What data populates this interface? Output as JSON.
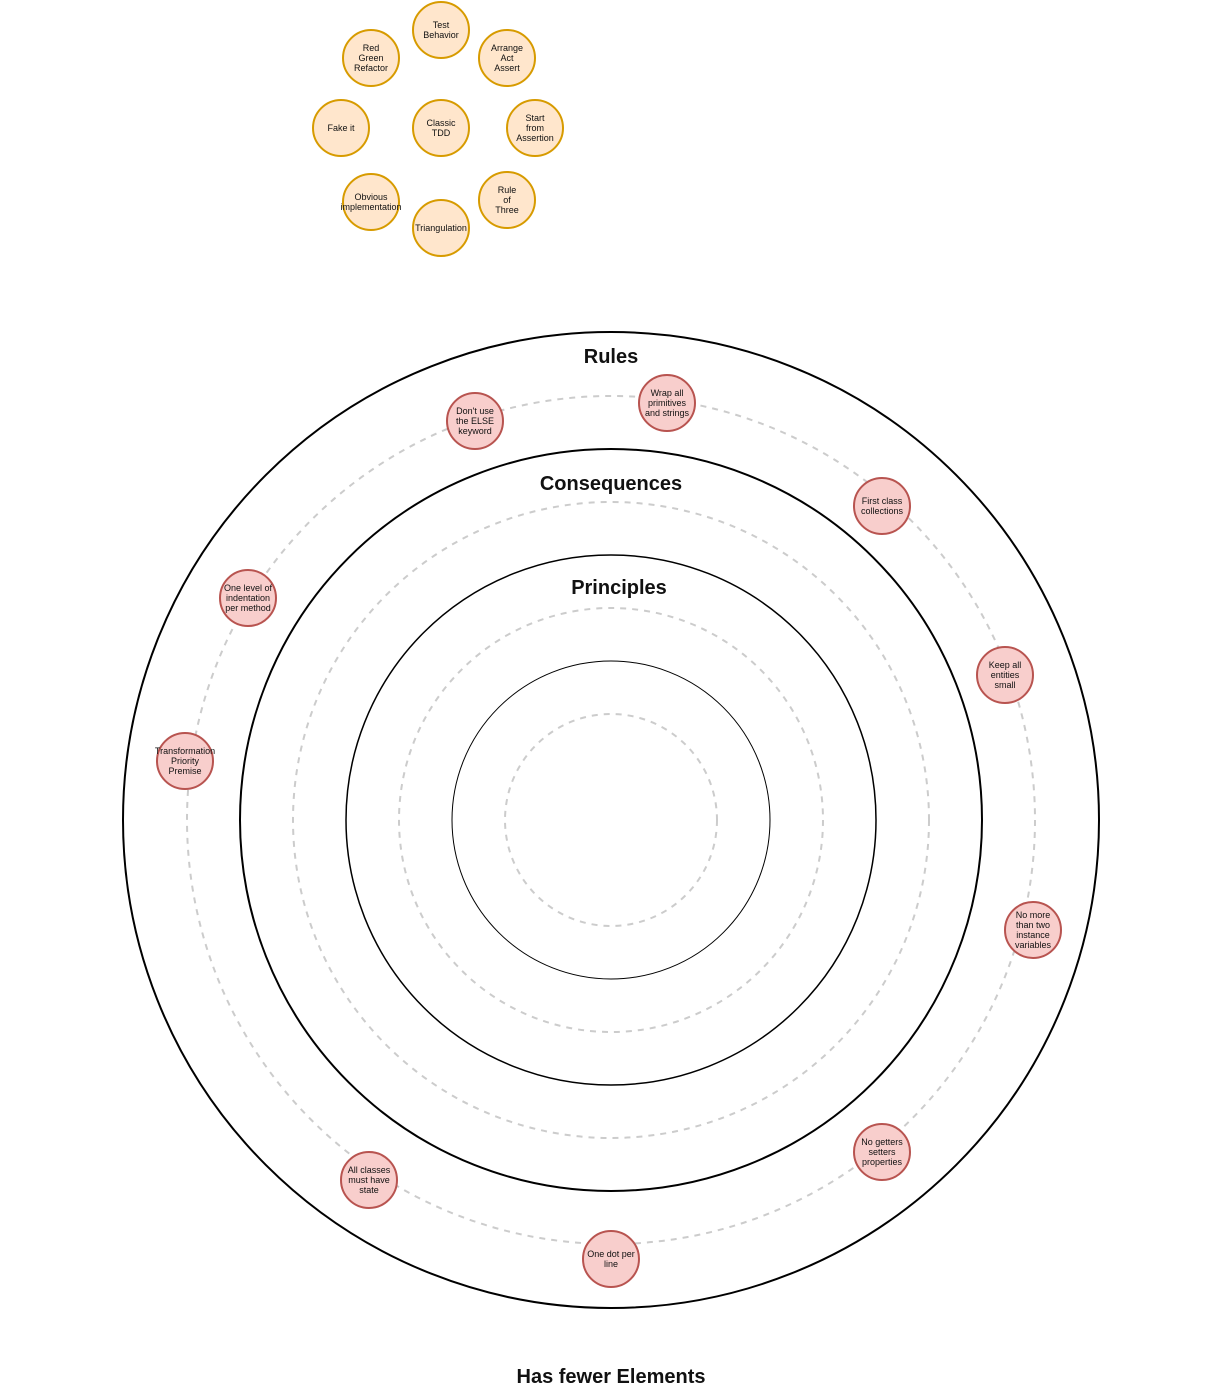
{
  "colors": {
    "practice_fill": "#ffe6cc",
    "practice_stroke": "#d79b00",
    "rule_fill": "#f8cecc",
    "rule_stroke": "#b85450",
    "ring_stroke": "#000000",
    "dashed_stroke": "#cccccc"
  },
  "practices": [
    {
      "id": "test-behavior",
      "lines": [
        "Test",
        "Behavior"
      ]
    },
    {
      "id": "arrange-act-assert",
      "lines": [
        "Arrange",
        "Act",
        "Assert"
      ]
    },
    {
      "id": "red-green-refactor",
      "lines": [
        "Red",
        "Green",
        "Refactor"
      ]
    },
    {
      "id": "fake-it",
      "lines": [
        "Fake it"
      ]
    },
    {
      "id": "classic-tdd",
      "lines": [
        "Classic",
        "TDD"
      ]
    },
    {
      "id": "start-from-assertion",
      "lines": [
        "Start",
        "from",
        "Assertion"
      ]
    },
    {
      "id": "obvious-implementation",
      "lines": [
        "Obvious",
        "implementation"
      ]
    },
    {
      "id": "rule-of-three",
      "lines": [
        "Rule",
        "of",
        "Three"
      ]
    },
    {
      "id": "triangulation",
      "lines": [
        "Triangulation"
      ]
    }
  ],
  "rings": {
    "rules": "Rules",
    "consequences": "Consequences",
    "principles": "Principles"
  },
  "rules": [
    {
      "id": "wrap-primitives",
      "lines": [
        "Wrap all",
        "primitives",
        "and strings"
      ]
    },
    {
      "id": "no-else",
      "lines": [
        "Don't use",
        "the ELSE",
        "keyword"
      ]
    },
    {
      "id": "first-class-collections",
      "lines": [
        "First class",
        "collections"
      ]
    },
    {
      "id": "one-level-indentation",
      "lines": [
        "One level of",
        "indentation",
        "per method"
      ]
    },
    {
      "id": "keep-entities-small",
      "lines": [
        "Keep all",
        "entities",
        "small"
      ]
    },
    {
      "id": "transformation-priority-premise",
      "lines": [
        "Transformation",
        "Priority",
        "Premise"
      ]
    },
    {
      "id": "no-more-than-two-ivars",
      "lines": [
        "No more",
        "than two",
        "instance",
        "variables"
      ]
    },
    {
      "id": "no-getters-setters",
      "lines": [
        "No getters",
        "setters",
        "properties"
      ]
    },
    {
      "id": "classes-have-state",
      "lines": [
        "All classes",
        "must have",
        "state"
      ]
    },
    {
      "id": "one-dot-per-line",
      "lines": [
        "One dot per",
        "line"
      ]
    }
  ],
  "footer": {
    "title": "Has fewer Elements"
  }
}
